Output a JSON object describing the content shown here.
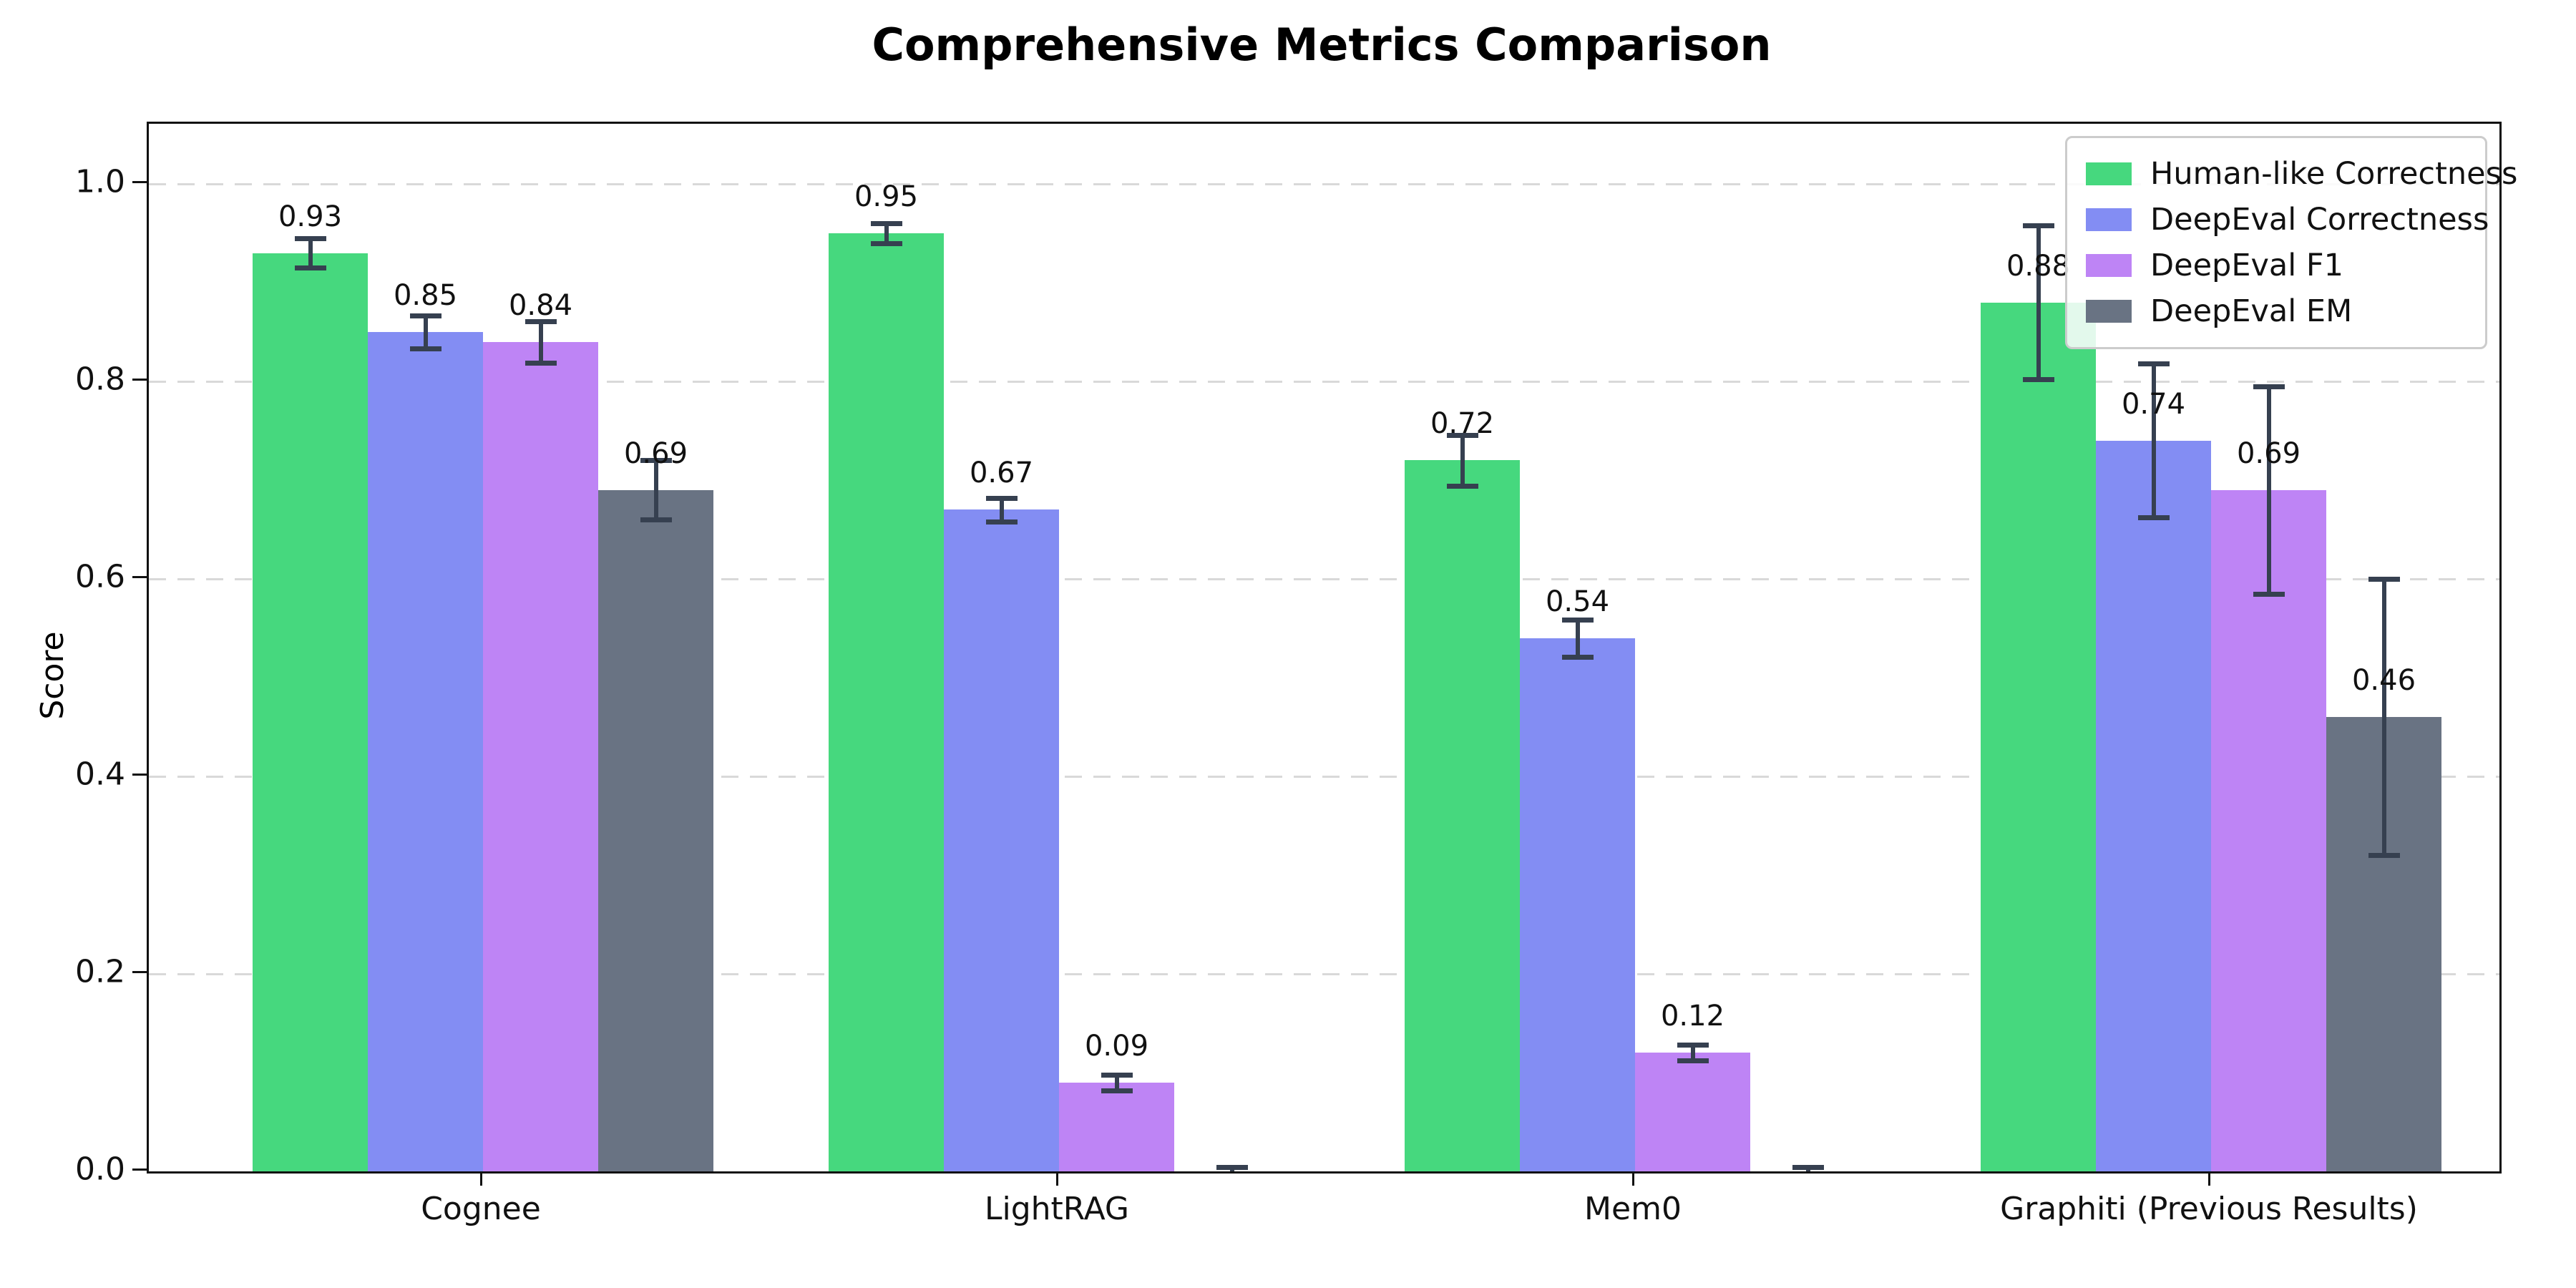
{
  "chart_data": {
    "type": "bar",
    "title": "Comprehensive Metrics Comparison",
    "ylabel": "Score",
    "xlabel": "",
    "categories": [
      "Cognee",
      "LightRAG",
      "Mem0",
      "Graphiti (Previous Results)"
    ],
    "y_ticks": [
      "0.0",
      "0.2",
      "0.4",
      "0.6",
      "0.8",
      "1.0"
    ],
    "ylim": [
      0,
      1.06
    ],
    "grid": "horizontal-dashed",
    "legend_position": "upper right",
    "error_bar_color": "#364050",
    "series": [
      {
        "name": "Human-like Correctness",
        "color": "#46d87e",
        "values": [
          0.93,
          0.95,
          0.72,
          0.88
        ],
        "errors": [
          0.015,
          0.01,
          0.026,
          0.078
        ],
        "labels": [
          "0.93",
          "0.95",
          "0.72",
          "0.88"
        ]
      },
      {
        "name": "DeepEval Correctness",
        "color": "#838df3",
        "values": [
          0.85,
          0.67,
          0.54,
          0.74
        ],
        "errors": [
          0.017,
          0.012,
          0.019,
          0.078
        ],
        "labels": [
          "0.85",
          "0.67",
          "0.54",
          "0.74"
        ]
      },
      {
        "name": "DeepEval F1",
        "color": "#be84f5",
        "values": [
          0.84,
          0.09,
          0.12,
          0.69
        ],
        "errors": [
          0.021,
          0.008,
          0.008,
          0.105
        ],
        "labels": [
          "0.84",
          "0.09",
          "0.12",
          "0.69"
        ]
      },
      {
        "name": "DeepEval EM",
        "color": "#697383",
        "values": [
          0.69,
          0.0,
          0.0,
          0.46
        ],
        "errors": [
          0.03,
          0.004,
          0.004,
          0.14
        ],
        "labels": [
          "0.69",
          "",
          "",
          "0.46"
        ]
      }
    ]
  }
}
